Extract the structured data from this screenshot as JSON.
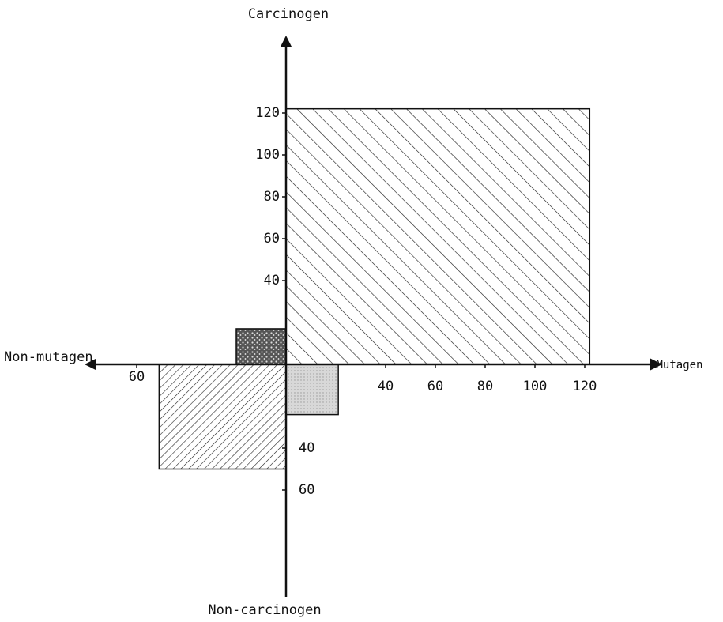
{
  "chart_data": {
    "type": "quadrant",
    "y_label": "Carcinogen",
    "y_label_neg": "Non-carcinogen",
    "x_label": "Mutagen",
    "x_label_neg": "Non-mutagen",
    "xlim": [
      -80,
      145
    ],
    "ylim": [
      -60,
      130
    ],
    "xticks": [
      {
        "value": -60,
        "label": "60"
      },
      40,
      60,
      80,
      100,
      120
    ],
    "yticks": [
      {
        "value": -60,
        "label": "60"
      },
      {
        "value": -40,
        "label": "40"
      },
      40,
      60,
      80,
      100,
      120
    ],
    "regions": [
      {
        "x": [
          0,
          122
        ],
        "y": [
          0,
          122
        ],
        "pattern": "hatch-down"
      },
      {
        "x": [
          -20,
          0
        ],
        "y": [
          0,
          17
        ],
        "pattern": "stipple"
      },
      {
        "x": [
          0,
          21
        ],
        "y": [
          -24,
          0
        ],
        "pattern": "light"
      },
      {
        "x": [
          -51,
          0
        ],
        "y": [
          -50,
          0
        ],
        "pattern": "hatch-up"
      }
    ]
  }
}
